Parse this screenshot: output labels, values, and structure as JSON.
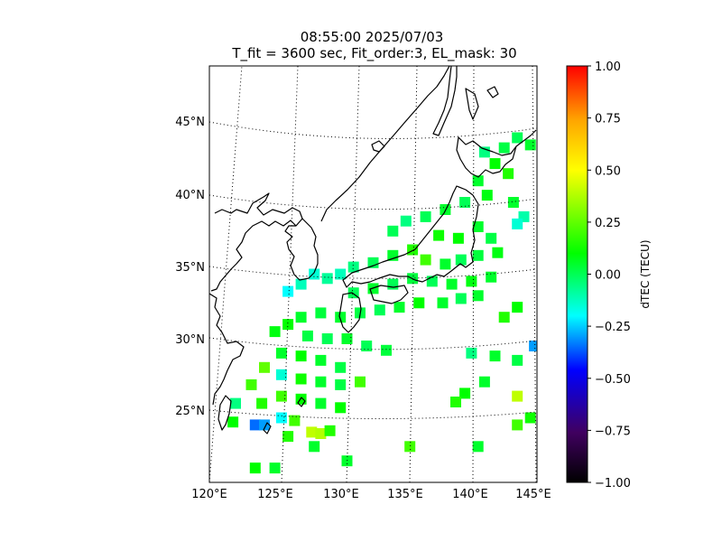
{
  "title_line1": "08:55:00 2025/07/03",
  "title_line2": "T_fit = 3600 sec, Fit_order:3, EL_mask: 30",
  "chart_data": {
    "type": "scatter",
    "title": "08:55:00 2025/07/03",
    "subtitle": "T_fit = 3600 sec, Fit_order:3, EL_mask: 30",
    "xlim": [
      120,
      145
    ],
    "ylim": [
      20,
      49
    ],
    "x_ticks": [
      120,
      125,
      130,
      135,
      140,
      145
    ],
    "x_tick_labels": [
      "120°E",
      "125°E",
      "130°E",
      "135°E",
      "140°E",
      "145°E"
    ],
    "y_ticks": [
      25,
      30,
      35,
      40,
      45
    ],
    "y_tick_labels": [
      "25°N",
      "30°N",
      "35°N",
      "40°N",
      "45°N"
    ],
    "grid": "dotted graticule",
    "colorbar": {
      "label": "dTEC (TECU)",
      "range": [
        -1.0,
        1.0
      ],
      "ticks": [
        1.0,
        0.75,
        0.5,
        0.25,
        0.0,
        -0.25,
        -0.5,
        -0.75,
        -1.0
      ],
      "tick_labels": [
        "1.00",
        "0.75",
        "0.50",
        "0.25",
        "0.00",
        "−0.25",
        "−0.50",
        "−0.75",
        "−1.00"
      ],
      "colormap": [
        "#000000",
        "#400060",
        "#0000ff",
        "#00ffff",
        "#00ff00",
        "#ffff00",
        "#ffa500",
        "#ff0000"
      ]
    },
    "points": [
      {
        "lon": 143.5,
        "lat": 44.0,
        "v": 0.0
      },
      {
        "lon": 142.5,
        "lat": 43.3,
        "v": 0.02
      },
      {
        "lon": 141.0,
        "lat": 43.0,
        "v": -0.05
      },
      {
        "lon": 144.5,
        "lat": 43.5,
        "v": 0.05
      },
      {
        "lon": 141.8,
        "lat": 42.2,
        "v": 0.1
      },
      {
        "lon": 140.5,
        "lat": 41.0,
        "v": 0.05
      },
      {
        "lon": 142.8,
        "lat": 41.5,
        "v": 0.15
      },
      {
        "lon": 141.2,
        "lat": 40.0,
        "v": 0.08
      },
      {
        "lon": 143.2,
        "lat": 39.5,
        "v": 0.05
      },
      {
        "lon": 144.0,
        "lat": 38.5,
        "v": -0.1
      },
      {
        "lon": 143.5,
        "lat": 38.0,
        "v": -0.15
      },
      {
        "lon": 139.5,
        "lat": 39.5,
        "v": 0.0
      },
      {
        "lon": 138.0,
        "lat": 39.0,
        "v": 0.05
      },
      {
        "lon": 136.5,
        "lat": 38.5,
        "v": 0.0
      },
      {
        "lon": 135.0,
        "lat": 38.2,
        "v": -0.05
      },
      {
        "lon": 134.0,
        "lat": 37.5,
        "v": 0.0
      },
      {
        "lon": 137.5,
        "lat": 37.2,
        "v": 0.12
      },
      {
        "lon": 139.0,
        "lat": 37.0,
        "v": 0.1
      },
      {
        "lon": 140.5,
        "lat": 37.8,
        "v": 0.05
      },
      {
        "lon": 141.5,
        "lat": 37.0,
        "v": 0.02
      },
      {
        "lon": 142.0,
        "lat": 36.0,
        "v": 0.08
      },
      {
        "lon": 140.5,
        "lat": 35.8,
        "v": 0.03
      },
      {
        "lon": 139.2,
        "lat": 35.5,
        "v": 0.0
      },
      {
        "lon": 138.0,
        "lat": 35.2,
        "v": 0.05
      },
      {
        "lon": 136.5,
        "lat": 35.5,
        "v": 0.2
      },
      {
        "lon": 135.5,
        "lat": 36.2,
        "v": 0.15
      },
      {
        "lon": 134.0,
        "lat": 35.8,
        "v": 0.05
      },
      {
        "lon": 132.5,
        "lat": 35.3,
        "v": 0.0
      },
      {
        "lon": 131.0,
        "lat": 35.0,
        "v": -0.05
      },
      {
        "lon": 130.0,
        "lat": 34.5,
        "v": -0.12
      },
      {
        "lon": 129.0,
        "lat": 34.2,
        "v": -0.08
      },
      {
        "lon": 128.0,
        "lat": 34.5,
        "v": -0.15
      },
      {
        "lon": 127.0,
        "lat": 33.8,
        "v": -0.12
      },
      {
        "lon": 126.0,
        "lat": 33.3,
        "v": -0.2
      },
      {
        "lon": 131.0,
        "lat": 33.2,
        "v": 0.0
      },
      {
        "lon": 132.5,
        "lat": 33.5,
        "v": 0.05
      },
      {
        "lon": 134.0,
        "lat": 33.8,
        "v": 0.0
      },
      {
        "lon": 135.5,
        "lat": 34.2,
        "v": 0.03
      },
      {
        "lon": 137.0,
        "lat": 34.0,
        "v": 0.0
      },
      {
        "lon": 138.5,
        "lat": 33.8,
        "v": 0.05
      },
      {
        "lon": 140.0,
        "lat": 34.0,
        "v": 0.08
      },
      {
        "lon": 141.5,
        "lat": 34.3,
        "v": 0.05
      },
      {
        "lon": 139.2,
        "lat": 32.8,
        "v": 0.0
      },
      {
        "lon": 137.8,
        "lat": 32.5,
        "v": 0.05
      },
      {
        "lon": 136.0,
        "lat": 32.5,
        "v": 0.1
      },
      {
        "lon": 134.5,
        "lat": 32.2,
        "v": 0.05
      },
      {
        "lon": 133.0,
        "lat": 32.0,
        "v": 0.0
      },
      {
        "lon": 131.5,
        "lat": 31.8,
        "v": 0.02
      },
      {
        "lon": 130.0,
        "lat": 31.5,
        "v": 0.05
      },
      {
        "lon": 128.5,
        "lat": 31.8,
        "v": 0.03
      },
      {
        "lon": 127.0,
        "lat": 31.5,
        "v": 0.05
      },
      {
        "lon": 126.0,
        "lat": 31.0,
        "v": 0.1
      },
      {
        "lon": 125.0,
        "lat": 30.5,
        "v": 0.08
      },
      {
        "lon": 127.5,
        "lat": 30.2,
        "v": 0.02
      },
      {
        "lon": 129.0,
        "lat": 30.0,
        "v": 0.0
      },
      {
        "lon": 130.5,
        "lat": 30.0,
        "v": 0.05
      },
      {
        "lon": 132.0,
        "lat": 29.5,
        "v": 0.0
      },
      {
        "lon": 133.5,
        "lat": 29.2,
        "v": 0.03
      },
      {
        "lon": 125.5,
        "lat": 29.0,
        "v": 0.05
      },
      {
        "lon": 127.0,
        "lat": 28.8,
        "v": 0.1
      },
      {
        "lon": 128.5,
        "lat": 28.5,
        "v": 0.05
      },
      {
        "lon": 130.0,
        "lat": 28.0,
        "v": 0.02
      },
      {
        "lon": 124.2,
        "lat": 28.0,
        "v": 0.25
      },
      {
        "lon": 125.5,
        "lat": 27.5,
        "v": -0.15
      },
      {
        "lon": 127.0,
        "lat": 27.2,
        "v": 0.12
      },
      {
        "lon": 128.5,
        "lat": 27.0,
        "v": 0.05
      },
      {
        "lon": 130.0,
        "lat": 26.8,
        "v": 0.02
      },
      {
        "lon": 131.5,
        "lat": 27.0,
        "v": 0.2
      },
      {
        "lon": 123.2,
        "lat": 26.8,
        "v": 0.2
      },
      {
        "lon": 124.0,
        "lat": 25.5,
        "v": 0.15
      },
      {
        "lon": 125.5,
        "lat": 26.0,
        "v": 0.2
      },
      {
        "lon": 127.0,
        "lat": 25.8,
        "v": 0.1
      },
      {
        "lon": 128.5,
        "lat": 25.5,
        "v": 0.05
      },
      {
        "lon": 130.0,
        "lat": 25.2,
        "v": 0.1
      },
      {
        "lon": 122.0,
        "lat": 25.5,
        "v": -0.05
      },
      {
        "lon": 121.8,
        "lat": 24.2,
        "v": 0.1
      },
      {
        "lon": 123.5,
        "lat": 24.0,
        "v": -0.35
      },
      {
        "lon": 124.2,
        "lat": 24.0,
        "v": -0.3
      },
      {
        "lon": 125.5,
        "lat": 24.5,
        "v": -0.2
      },
      {
        "lon": 126.5,
        "lat": 24.3,
        "v": 0.2
      },
      {
        "lon": 127.8,
        "lat": 23.5,
        "v": 0.4
      },
      {
        "lon": 128.5,
        "lat": 23.4,
        "v": 0.38
      },
      {
        "lon": 129.2,
        "lat": 23.6,
        "v": 0.15
      },
      {
        "lon": 126.0,
        "lat": 23.2,
        "v": 0.15
      },
      {
        "lon": 128.0,
        "lat": 22.5,
        "v": 0.05
      },
      {
        "lon": 130.5,
        "lat": 21.5,
        "v": 0.05
      },
      {
        "lon": 123.5,
        "lat": 21.0,
        "v": 0.1
      },
      {
        "lon": 125.0,
        "lat": 21.0,
        "v": 0.05
      },
      {
        "lon": 135.3,
        "lat": 22.5,
        "v": 0.2
      },
      {
        "lon": 140.5,
        "lat": 22.5,
        "v": 0.05
      },
      {
        "lon": 143.5,
        "lat": 24.0,
        "v": 0.2
      },
      {
        "lon": 144.5,
        "lat": 24.5,
        "v": 0.12
      },
      {
        "lon": 143.5,
        "lat": 26.0,
        "v": 0.4
      },
      {
        "lon": 141.0,
        "lat": 27.0,
        "v": 0.05
      },
      {
        "lon": 139.5,
        "lat": 26.2,
        "v": 0.1
      },
      {
        "lon": 138.8,
        "lat": 25.6,
        "v": 0.15
      },
      {
        "lon": 143.5,
        "lat": 28.5,
        "v": 0.02
      },
      {
        "lon": 140.0,
        "lat": 29.0,
        "v": -0.05
      },
      {
        "lon": 141.8,
        "lat": 28.8,
        "v": 0.05
      },
      {
        "lon": 144.8,
        "lat": 29.5,
        "v": -0.3
      },
      {
        "lon": 142.5,
        "lat": 31.5,
        "v": 0.15
      },
      {
        "lon": 143.5,
        "lat": 32.2,
        "v": 0.1
      },
      {
        "lon": 140.5,
        "lat": 33.0,
        "v": 0.05
      }
    ]
  }
}
